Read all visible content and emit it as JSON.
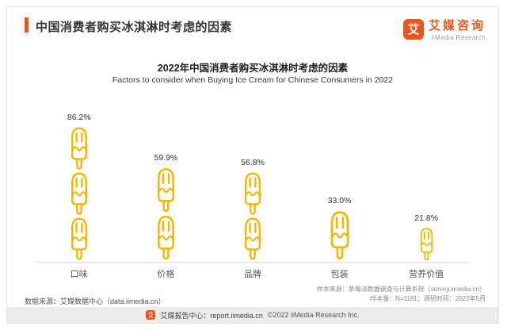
{
  "header": {
    "title": "中国消费者购买冰淇淋时考虑的因素",
    "logo": {
      "icon_glyph": "艾",
      "brand": "艾媒咨询",
      "sub": "iiMedia Research"
    }
  },
  "chart_data": {
    "type": "bar",
    "style": "pictogram-popsicle",
    "title": "2022年中国消费者购买冰淇淋时考虑的因素",
    "subtitle": "Factors to consider when Buying Ice Cream for Chinese Consumers in 2022",
    "categories": [
      "口味",
      "价格",
      "品牌",
      "包装",
      "营养价值"
    ],
    "values": [
      86.2,
      59.9,
      56.8,
      33.0,
      21.8
    ],
    "value_labels": [
      "86.2%",
      "59.9%",
      "56.8%",
      "33.0%",
      "21.8%"
    ],
    "unit": "%",
    "ylim": [
      0,
      100
    ],
    "legend": "none",
    "grid": "baseline-only",
    "icon_color": "#F8B500"
  },
  "footnotes": {
    "source_left": "数据来源：艾媒数据中心（data.iimedia.cn）",
    "sample_source": "样本来源：草莓派数据调查与计算系统（survey.iimedia.cn）",
    "sample_info": "样本量：N=1181；调研时间：2022年5月"
  },
  "footer": {
    "report_text": "艾媒报告中心：report.iimedia.cn",
    "copyright": "©2022 iiMedia Research Inc."
  },
  "colors": {
    "accent": "#F0541E",
    "popsicle": "#F8B500"
  }
}
